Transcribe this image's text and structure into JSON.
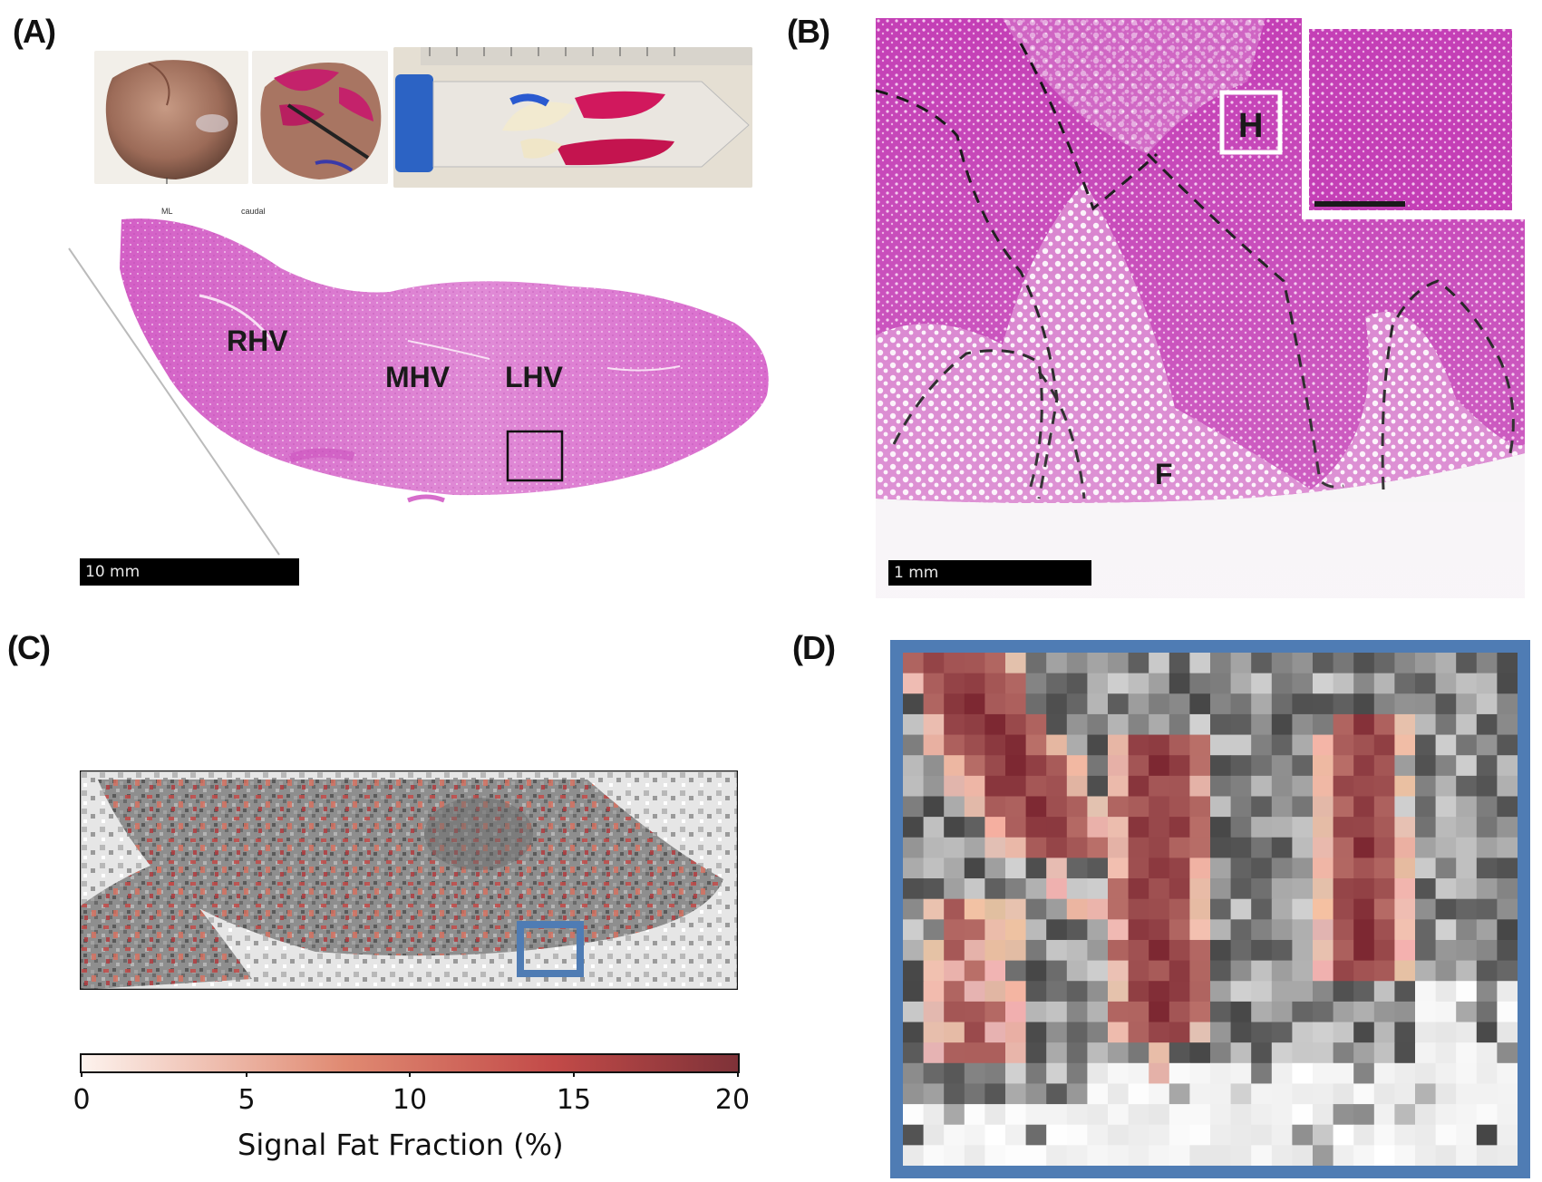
{
  "panels": {
    "a": {
      "label": "(A)",
      "photo_caption_left": "ML",
      "photo_caption_right": "caudal",
      "regions": [
        "RHV",
        "MHV",
        "LHV"
      ],
      "scalebar": "10 mm"
    },
    "b": {
      "label": "(B)",
      "regions": [
        "H",
        "F"
      ],
      "scalebar": "1 mm"
    },
    "c": {
      "label": "(C)",
      "colorbar": {
        "ticks": [
          "0",
          "5",
          "10",
          "15",
          "20"
        ],
        "title": "Signal Fat Fraction (%)",
        "colors": [
          "#fdf3ee",
          "#e08a72",
          "#c24a48",
          "#7e3238"
        ]
      }
    },
    "d": {
      "label": "(D)",
      "frame_color": "#4f7cb4"
    }
  },
  "colors": {
    "he_stain": "#c44fb8",
    "he_pale": "#e8a6df",
    "fat_red": "#c24a48",
    "highlight_blue": "#4f7cb4"
  }
}
